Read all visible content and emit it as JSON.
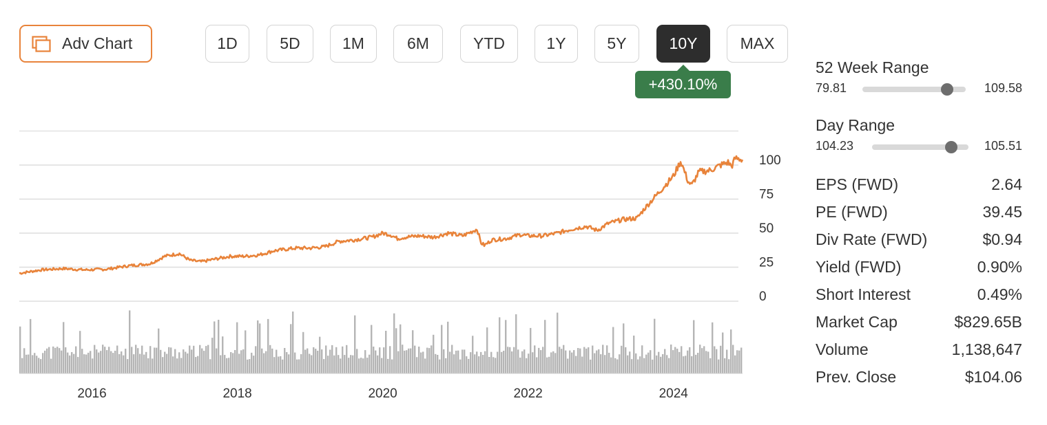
{
  "toolbar": {
    "adv_chart_label": "Adv Chart",
    "ranges": [
      "1D",
      "5D",
      "1M",
      "6M",
      "YTD",
      "1Y",
      "5Y",
      "10Y",
      "MAX"
    ],
    "active_range": "10Y",
    "change_label": "+430.10%",
    "change_color": "#3a7d4a",
    "accent_color": "#e8833a"
  },
  "chart_data": {
    "type": "line",
    "x_tick_labels": [
      "2016",
      "2018",
      "2020",
      "2022",
      "2024"
    ],
    "x_ticks": [
      2016,
      2018,
      2020,
      2022,
      2024
    ],
    "xlim": [
      2015.0,
      2024.95
    ],
    "y_tick_labels": [
      "100",
      "75",
      "50",
      "25",
      "0"
    ],
    "y_ticks": [
      100,
      75,
      50,
      25,
      0
    ],
    "ylim": [
      0,
      125
    ],
    "grid": true,
    "line_color": "#e8833a",
    "volume_color": "#b5b5b5",
    "series": [
      {
        "x": [
          2015.0,
          2015.3,
          2015.6,
          2015.9,
          2016.2,
          2016.5,
          2016.8,
          2017.0,
          2017.2,
          2017.35,
          2017.5,
          2017.7,
          2017.9,
          2018.1,
          2018.3,
          2018.5,
          2018.8,
          2019.0,
          2019.2,
          2019.4,
          2019.6,
          2019.85,
          2020.0,
          2020.1,
          2020.2,
          2020.3,
          2020.5,
          2020.7,
          2020.9,
          2021.1,
          2021.3,
          2021.35,
          2021.4,
          2021.5,
          2021.7,
          2021.9,
          2022.0,
          2022.2,
          2022.4,
          2022.6,
          2022.8,
          2022.95,
          2023.1,
          2023.3,
          2023.5,
          2023.6,
          2023.7,
          2023.8,
          2023.9,
          2024.0,
          2024.1,
          2024.2,
          2024.25,
          2024.35,
          2024.5,
          2024.65,
          2024.75,
          2024.8,
          2024.85,
          2024.95
        ],
        "y": [
          20.5,
          23,
          24,
          23,
          23.5,
          26,
          27.5,
          33,
          35,
          30,
          29,
          31,
          33,
          33,
          34,
          37,
          39,
          39,
          40,
          44,
          45,
          47,
          50,
          49,
          46,
          47,
          48,
          47,
          50,
          48,
          53,
          43,
          41,
          45,
          46,
          49,
          48,
          48,
          50,
          53,
          55,
          52,
          57,
          60,
          61,
          68,
          74,
          80,
          86,
          92,
          103,
          88,
          85,
          95,
          96,
          100,
          102,
          99,
          105,
          104
        ]
      }
    ]
  },
  "stats": {
    "week52": {
      "title": "52 Week Range",
      "low": "79.81",
      "high": "109.58",
      "position": 0.82
    },
    "day": {
      "title": "Day Range",
      "low": "104.23",
      "high": "105.51",
      "position": 0.82
    },
    "rows": [
      {
        "label": "EPS (FWD)",
        "value": "2.64"
      },
      {
        "label": "PE (FWD)",
        "value": "39.45"
      },
      {
        "label": "Div Rate (FWD)",
        "value": "$0.94"
      },
      {
        "label": "Yield (FWD)",
        "value": "0.90%"
      },
      {
        "label": "Short Interest",
        "value": "0.49%"
      },
      {
        "label": "Market Cap",
        "value": "$829.65B"
      },
      {
        "label": "Volume",
        "value": "1,138,647"
      },
      {
        "label": "Prev. Close",
        "value": "$104.06"
      }
    ]
  }
}
